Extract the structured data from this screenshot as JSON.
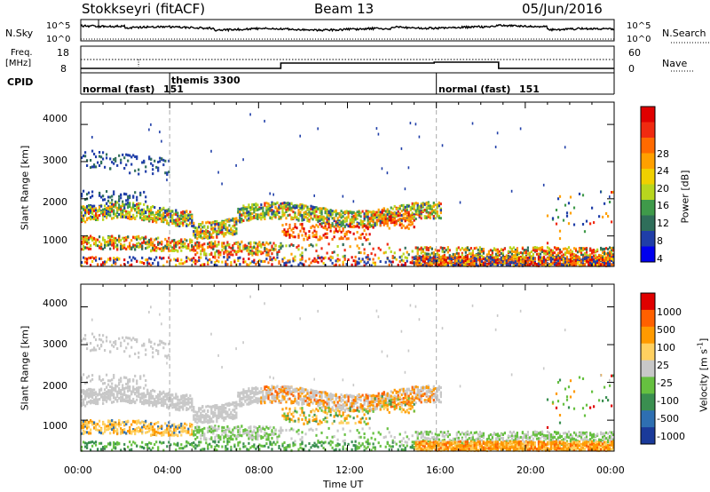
{
  "header": {
    "station": "Stokkseyri (fitACF)",
    "beam": "Beam 13",
    "date": "05/Jun/2016"
  },
  "nsky": {
    "label": "N.Sky",
    "right_label": "N.Search",
    "tick_top": "10^5",
    "tick_bottom": "10^0"
  },
  "freq": {
    "label_line1": "Freq.",
    "label_line2": "[MHz]",
    "tick_top": "18",
    "tick_bottom": "8",
    "nave_label": "Nave",
    "nave_tick_top": "60",
    "nave_tick_bottom": "0"
  },
  "cpid": {
    "label": "CPID",
    "segments": [
      {
        "name": "normal (fast)",
        "id": "151",
        "start": 0,
        "end": 4
      },
      {
        "name": "themis",
        "id": "3300",
        "start": 4,
        "end": 16
      },
      {
        "name": "normal (fast)",
        "id": "151",
        "start": 16,
        "end": 24
      }
    ]
  },
  "chart_data": [
    {
      "type": "heatmap",
      "name": "Power",
      "ylabel": "Slant Range [km]",
      "ylim": [
        180,
        4600
      ],
      "yticks": [
        "1000",
        "2000",
        "3000",
        "4000"
      ],
      "xlim": [
        0,
        24
      ],
      "colorbar": {
        "label": "Power [dB]",
        "ticks": [
          "4",
          "8",
          "12",
          "16",
          "20",
          "24",
          "28"
        ],
        "colors": [
          "#0000ee",
          "#1f3ea8",
          "#2f6e5a",
          "#3f9a4a",
          "#b8d61e",
          "#f0d000",
          "#ffa000",
          "#ff6a00",
          "#f02a10",
          "#e00000"
        ]
      }
    },
    {
      "type": "heatmap",
      "name": "Velocity",
      "ylabel": "Slant Range [km]",
      "ylim": [
        180,
        4600
      ],
      "yticks": [
        "1000",
        "2000",
        "3000",
        "4000"
      ],
      "xlim": [
        0,
        24
      ],
      "xlabel": "Time UT",
      "xticks": [
        "00:00",
        "04:00",
        "08:00",
        "12:00",
        "16:00",
        "20:00",
        "00:00"
      ],
      "colorbar": {
        "label": "Velocity [m s",
        "label_sup": "-1",
        "label_end": "]",
        "ticks": [
          "1000",
          "500",
          "100",
          "25",
          "-25",
          "-100",
          "-500",
          "-1000"
        ],
        "colors": [
          "#1a3a9a",
          "#2e6fb2",
          "#3a8f50",
          "#66c040",
          "#c8c8c8",
          "#ffd060",
          "#ff9a00",
          "#ff6000",
          "#e00000"
        ]
      }
    }
  ]
}
